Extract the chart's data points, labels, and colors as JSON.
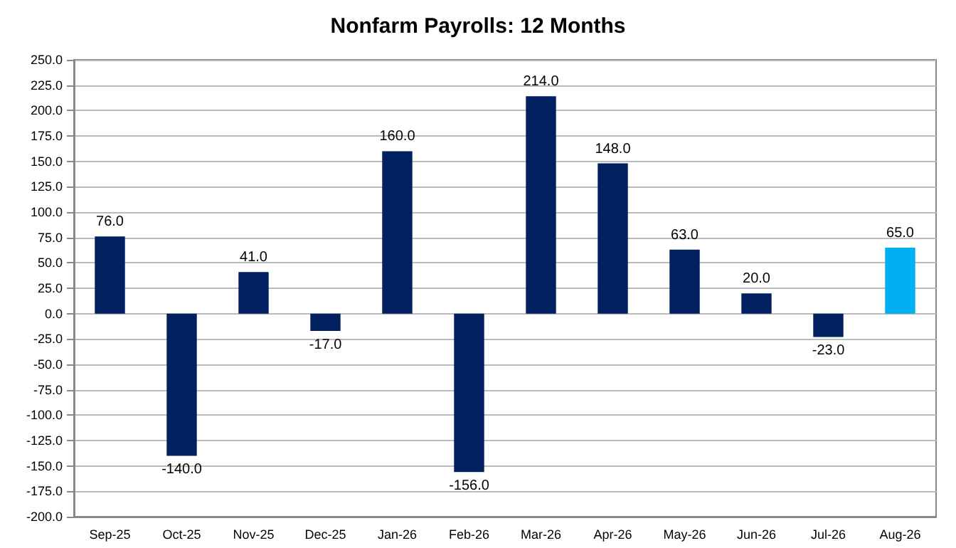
{
  "chart_data": {
    "type": "bar",
    "title": "Nonfarm Payrolls: 12 Months",
    "categories": [
      "Sep-25",
      "Oct-25",
      "Nov-25",
      "Dec-25",
      "Jan-26",
      "Feb-26",
      "Mar-26",
      "Apr-26",
      "May-26",
      "Jun-26",
      "Jul-26",
      "Aug-26"
    ],
    "values": [
      76,
      -140,
      41,
      -17,
      160,
      -156,
      214,
      148,
      63,
      20,
      -23,
      65
    ],
    "colors": [
      "#002060",
      "#002060",
      "#002060",
      "#002060",
      "#002060",
      "#002060",
      "#002060",
      "#002060",
      "#002060",
      "#002060",
      "#002060",
      "#00b0f0"
    ],
    "value_labels": [
      "76.0",
      "-140.0",
      "41.0",
      "-17.0",
      "160.0",
      "-156.0",
      "214.0",
      "148.0",
      "63.0",
      "20.0",
      "-23.0",
      "65.0"
    ],
    "ylim": [
      -200,
      250
    ],
    "yticks": [
      {
        "value": -200,
        "label": "-200.0"
      },
      {
        "value": -175,
        "label": "-175.0"
      },
      {
        "value": -150,
        "label": "-150.0"
      },
      {
        "value": -125,
        "label": "-125.0"
      },
      {
        "value": -100,
        "label": "-100.0"
      },
      {
        "value": -75,
        "label": "-75.0"
      },
      {
        "value": -50,
        "label": "-50.0"
      },
      {
        "value": -25,
        "label": "-25.0"
      },
      {
        "value": 0,
        "label": "0.0"
      },
      {
        "value": 25,
        "label": "25.0"
      },
      {
        "value": 50,
        "label": "50.0"
      },
      {
        "value": 75,
        "label": "75.0"
      },
      {
        "value": 100,
        "label": "100.0"
      },
      {
        "value": 125,
        "label": "125.0"
      },
      {
        "value": 150,
        "label": "150.0"
      },
      {
        "value": 175,
        "label": "175.0"
      },
      {
        "value": 200,
        "label": "200.0"
      },
      {
        "value": 225,
        "label": "225.0"
      },
      {
        "value": 250,
        "label": "250.0"
      }
    ],
    "grid": "y"
  }
}
